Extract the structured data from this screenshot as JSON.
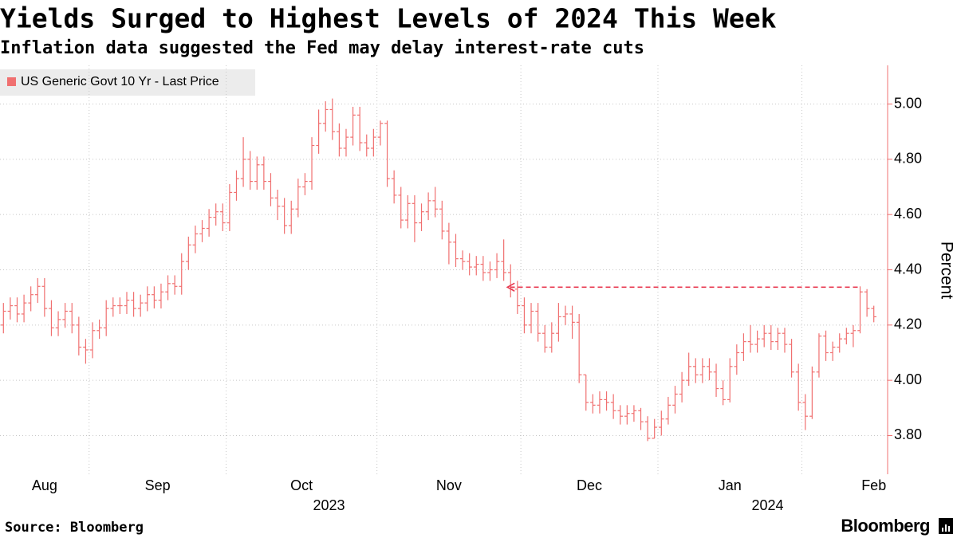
{
  "chart_data": {
    "type": "ohlc",
    "title": "Yields Surged to Highest Levels of 2024 This Week",
    "subtitle": "Inflation data suggested the Fed may delay interest-rate cuts",
    "y_label": "Percent",
    "source": "Source: Bloomberg",
    "branding": "Bloomberg",
    "grid": true,
    "legend": "top-left",
    "categories": [
      "Aug",
      null,
      null,
      null,
      null,
      null,
      null,
      null,
      null,
      null,
      null,
      null,
      null,
      "Sep",
      null,
      null,
      null,
      null,
      null,
      null,
      null,
      null,
      null,
      null,
      null,
      null,
      null,
      null,
      null,
      null,
      null,
      null,
      null,
      "Oct",
      null,
      null,
      null,
      null,
      null,
      null,
      null,
      null,
      null,
      null,
      null,
      null,
      null,
      null,
      null,
      null,
      null,
      null,
      null,
      null,
      null,
      "Nov",
      null,
      null,
      null,
      null,
      null,
      null,
      null,
      null,
      null,
      null,
      null,
      null,
      null,
      null,
      null,
      null,
      null,
      null,
      null,
      null,
      "Dec",
      null,
      null,
      null,
      null,
      null,
      null,
      null,
      null,
      null,
      null,
      null,
      null,
      null,
      null,
      null,
      null,
      null,
      null,
      null,
      "Jan",
      null,
      null,
      null,
      null,
      null,
      null,
      null,
      null,
      null,
      null,
      null,
      null,
      null,
      null,
      null,
      null,
      null,
      null,
      null,
      null,
      "Feb",
      null,
      null,
      null,
      null,
      null,
      null,
      null,
      null,
      null,
      null
    ],
    "year_labels": [
      "2023",
      null,
      null,
      null,
      null,
      null,
      null,
      null,
      null,
      null,
      null,
      null,
      null,
      null,
      null,
      null,
      null,
      null,
      null,
      null,
      null,
      null,
      null,
      null,
      null,
      null,
      null,
      null,
      null,
      null,
      null,
      null,
      null,
      null,
      null,
      null,
      null,
      null,
      null,
      null,
      null,
      null,
      null,
      null,
      null,
      null,
      null,
      null,
      null,
      null,
      null,
      null,
      null,
      null,
      null,
      null,
      null,
      null,
      null,
      null,
      null,
      null,
      null,
      null,
      null,
      null,
      null,
      null,
      null,
      null,
      null,
      null,
      null,
      null,
      null,
      null,
      null,
      null,
      null,
      null,
      null,
      null,
      null,
      null,
      null,
      null,
      null,
      null,
      null,
      null,
      null,
      null,
      null,
      null,
      null,
      null,
      "2024",
      null,
      null,
      null,
      null,
      null,
      null,
      null,
      null,
      null,
      null,
      null,
      null,
      null,
      null,
      null,
      null,
      null,
      null,
      null,
      null,
      null,
      null,
      null,
      null,
      null,
      null,
      null,
      null,
      null,
      null,
      null
    ],
    "series": [
      {
        "name": "US Generic Govt 10 Yr - Last Price",
        "color": "#f07070",
        "open": [
          4.2,
          4.25,
          4.27,
          4.24,
          4.28,
          4.31,
          4.34,
          4.26,
          4.19,
          4.22,
          4.25,
          4.2,
          4.12,
          4.11,
          4.18,
          4.19,
          4.26,
          4.27,
          4.27,
          4.29,
          4.26,
          4.28,
          4.31,
          4.29,
          4.32,
          4.35,
          4.34,
          4.43,
          4.49,
          4.53,
          4.55,
          4.59,
          4.61,
          4.57,
          4.68,
          4.73,
          4.8,
          4.72,
          4.78,
          4.72,
          4.66,
          4.63,
          4.56,
          4.62,
          4.7,
          4.72,
          4.85,
          4.93,
          4.98,
          4.9,
          4.84,
          4.88,
          4.96,
          4.86,
          4.84,
          4.88,
          4.93,
          4.73,
          4.67,
          4.58,
          4.64,
          4.57,
          4.61,
          4.65,
          4.62,
          4.54,
          4.5,
          4.44,
          4.43,
          4.41,
          4.42,
          4.39,
          4.4,
          4.43,
          4.39,
          4.33,
          4.27,
          4.2,
          4.25,
          4.17,
          4.12,
          4.17,
          4.23,
          4.24,
          4.21,
          4.02,
          3.92,
          3.91,
          3.93,
          3.92,
          3.89,
          3.87,
          3.88,
          3.89,
          3.85,
          3.79,
          3.83,
          3.86,
          3.91,
          3.95,
          4.0,
          4.05,
          4.02,
          4.05,
          4.03,
          3.97,
          3.93,
          4.05,
          4.1,
          4.14,
          4.13,
          4.15,
          4.17,
          4.14,
          4.17,
          4.13,
          4.03,
          3.92,
          3.87,
          4.03,
          4.16,
          4.1,
          4.12,
          4.15,
          4.17,
          4.18,
          4.32,
          4.26
        ],
        "high": [
          4.28,
          4.3,
          4.3,
          4.31,
          4.34,
          4.37,
          4.37,
          4.29,
          4.25,
          4.28,
          4.28,
          4.23,
          4.15,
          4.21,
          4.22,
          4.29,
          4.3,
          4.3,
          4.32,
          4.32,
          4.31,
          4.34,
          4.34,
          4.35,
          4.38,
          4.38,
          4.46,
          4.52,
          4.56,
          4.58,
          4.62,
          4.64,
          4.64,
          4.71,
          4.76,
          4.88,
          4.83,
          4.81,
          4.81,
          4.75,
          4.69,
          4.66,
          4.65,
          4.73,
          4.75,
          4.88,
          4.98,
          5.01,
          5.02,
          4.93,
          4.91,
          4.99,
          4.99,
          4.89,
          4.91,
          4.94,
          4.94,
          4.76,
          4.7,
          4.67,
          4.67,
          4.64,
          4.68,
          4.7,
          4.65,
          4.57,
          4.53,
          4.47,
          4.46,
          4.45,
          4.45,
          4.43,
          4.46,
          4.51,
          4.42,
          4.36,
          4.3,
          4.28,
          4.28,
          4.2,
          4.21,
          4.28,
          4.27,
          4.27,
          4.24,
          4.02,
          3.95,
          3.96,
          3.96,
          3.95,
          3.91,
          3.91,
          3.91,
          3.9,
          3.87,
          3.86,
          3.89,
          3.94,
          3.98,
          4.03,
          4.1,
          4.08,
          4.08,
          4.08,
          4.06,
          4.0,
          4.08,
          4.13,
          4.17,
          4.2,
          4.18,
          4.2,
          4.2,
          4.19,
          4.19,
          4.15,
          4.06,
          3.95,
          4.05,
          4.17,
          4.18,
          4.14,
          4.17,
          4.19,
          4.2,
          4.34,
          4.33,
          4.27
        ],
        "low": [
          4.17,
          4.22,
          4.21,
          4.21,
          4.25,
          4.28,
          4.23,
          4.16,
          4.16,
          4.19,
          4.17,
          4.09,
          4.06,
          4.08,
          4.15,
          4.16,
          4.23,
          4.24,
          4.24,
          4.23,
          4.23,
          4.25,
          4.26,
          4.26,
          4.29,
          4.31,
          4.31,
          4.4,
          4.46,
          4.5,
          4.52,
          4.56,
          4.54,
          4.54,
          4.65,
          4.7,
          4.69,
          4.69,
          4.69,
          4.63,
          4.58,
          4.53,
          4.53,
          4.59,
          4.67,
          4.69,
          4.82,
          4.9,
          4.87,
          4.81,
          4.81,
          4.85,
          4.83,
          4.81,
          4.81,
          4.85,
          4.7,
          4.64,
          4.55,
          4.55,
          4.5,
          4.54,
          4.58,
          4.59,
          4.51,
          4.42,
          4.41,
          4.4,
          4.38,
          4.38,
          4.36,
          4.36,
          4.37,
          4.36,
          4.3,
          4.24,
          4.17,
          4.17,
          4.14,
          4.1,
          4.1,
          4.14,
          4.2,
          4.15,
          3.99,
          3.89,
          3.88,
          3.88,
          3.89,
          3.86,
          3.84,
          3.84,
          3.85,
          3.82,
          3.78,
          3.79,
          3.8,
          3.84,
          3.88,
          3.92,
          3.98,
          3.99,
          3.99,
          4.0,
          3.94,
          3.91,
          3.92,
          4.02,
          4.07,
          4.1,
          4.1,
          4.12,
          4.11,
          4.11,
          4.1,
          4.01,
          3.89,
          3.82,
          3.86,
          4.01,
          4.07,
          4.07,
          4.1,
          4.13,
          4.12,
          4.17,
          4.23,
          4.21
        ],
        "close": [
          4.25,
          4.27,
          4.24,
          4.28,
          4.31,
          4.34,
          4.26,
          4.19,
          4.22,
          4.25,
          4.2,
          4.12,
          4.11,
          4.18,
          4.19,
          4.26,
          4.27,
          4.27,
          4.29,
          4.26,
          4.28,
          4.31,
          4.29,
          4.32,
          4.35,
          4.34,
          4.43,
          4.49,
          4.53,
          4.55,
          4.59,
          4.61,
          4.57,
          4.68,
          4.73,
          4.8,
          4.72,
          4.78,
          4.72,
          4.66,
          4.63,
          4.56,
          4.62,
          4.7,
          4.72,
          4.85,
          4.93,
          4.98,
          4.9,
          4.84,
          4.88,
          4.96,
          4.86,
          4.84,
          4.88,
          4.93,
          4.73,
          4.67,
          4.58,
          4.64,
          4.57,
          4.61,
          4.65,
          4.62,
          4.54,
          4.5,
          4.44,
          4.43,
          4.41,
          4.42,
          4.39,
          4.4,
          4.43,
          4.39,
          4.33,
          4.27,
          4.2,
          4.25,
          4.17,
          4.12,
          4.17,
          4.23,
          4.24,
          4.21,
          4.02,
          3.92,
          3.91,
          3.93,
          3.92,
          3.89,
          3.87,
          3.88,
          3.89,
          3.85,
          3.79,
          3.83,
          3.86,
          3.91,
          3.95,
          4.0,
          4.05,
          4.02,
          4.05,
          4.03,
          3.97,
          3.93,
          4.05,
          4.1,
          4.14,
          4.13,
          4.15,
          4.17,
          4.14,
          4.17,
          4.13,
          4.03,
          3.92,
          3.87,
          4.03,
          4.16,
          4.1,
          4.12,
          4.15,
          4.17,
          4.18,
          4.32,
          4.26,
          4.23
        ]
      }
    ],
    "ylim": [
      3.66,
      5.14
    ],
    "yticks": [
      {
        "value": 3.8,
        "label": "3.80"
      },
      {
        "value": 4,
        "label": "4.00"
      },
      {
        "value": 4.2,
        "label": "4.20"
      },
      {
        "value": 4.4,
        "label": "4.40"
      },
      {
        "value": 4.6,
        "label": "4.60"
      },
      {
        "value": 4.8,
        "label": "4.80"
      },
      {
        "value": 5,
        "label": "5.00"
      }
    ]
  }
}
